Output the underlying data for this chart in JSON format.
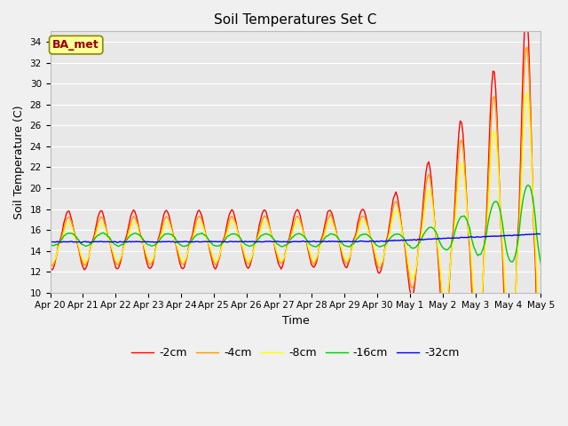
{
  "title": "Soil Temperatures Set C",
  "xlabel": "Time",
  "ylabel": "Soil Temperature (C)",
  "ylim": [
    10,
    35
  ],
  "yticks": [
    10,
    12,
    14,
    16,
    18,
    20,
    22,
    24,
    26,
    28,
    30,
    32,
    34
  ],
  "fig_bg": "#f0f0f0",
  "plot_bg": "#e8e8e8",
  "grid_color": "#ffffff",
  "annotation_text": "BA_met",
  "annotation_bg": "#ffff99",
  "annotation_border": "#888800",
  "annotation_text_color": "#990000",
  "series_colors": [
    "#ff0000",
    "#ff9900",
    "#ffff00",
    "#00cc00",
    "#0000ff"
  ],
  "series_labels": [
    "-2cm",
    "-4cm",
    "-8cm",
    "-16cm",
    "-32cm"
  ],
  "x_tick_labels": [
    "Apr 20",
    "Apr 21",
    "Apr 22",
    "Apr 23",
    "Apr 24",
    "Apr 25",
    "Apr 26",
    "Apr 27",
    "Apr 28",
    "Apr 29",
    "Apr 30",
    "May 1",
    "May 2",
    "May 3",
    "May 4",
    "May 5"
  ]
}
